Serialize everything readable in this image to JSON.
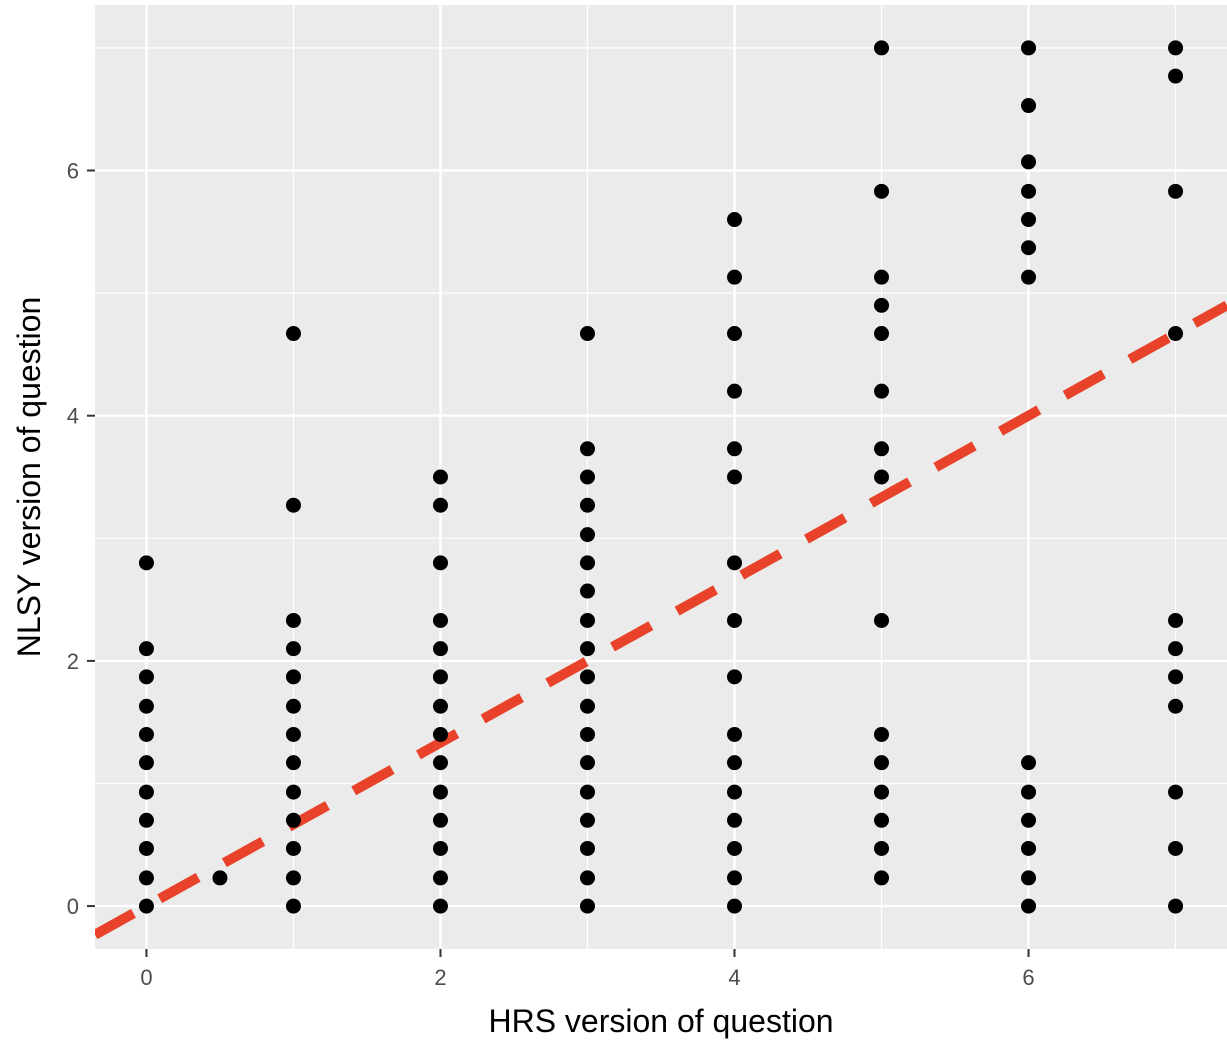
{
  "chart_data": {
    "type": "scatter",
    "title": "",
    "xlabel": "HRS version of question",
    "ylabel": "NLSY version of question",
    "xlim": [
      -0.35,
      7.35
    ],
    "ylim": [
      -0.35,
      7.35
    ],
    "x_ticks": [
      0,
      2,
      4,
      6
    ],
    "y_ticks": [
      0,
      2,
      4,
      6
    ],
    "x_tick_labels": [
      "0",
      "2",
      "4",
      "6"
    ],
    "y_tick_labels": [
      "0",
      "2",
      "4",
      "6"
    ],
    "grid": true,
    "background": "#ebebeb",
    "grid_color": "#ffffff",
    "point_color": "#000000",
    "reference_line": {
      "slope": 0.6667,
      "intercept": 0,
      "color": "#e8432a",
      "style": "dashed"
    },
    "series": [
      {
        "points": [
          [
            0,
            0
          ],
          [
            0,
            0.23
          ],
          [
            0,
            0.47
          ],
          [
            0,
            0.7
          ],
          [
            0,
            0.93
          ],
          [
            0,
            1.17
          ],
          [
            0,
            1.4
          ],
          [
            0,
            1.63
          ],
          [
            0,
            1.87
          ],
          [
            0,
            2.1
          ],
          [
            0,
            2.8
          ],
          [
            0.5,
            0.23
          ],
          [
            1,
            0
          ],
          [
            1,
            0.23
          ],
          [
            1,
            0.47
          ],
          [
            1,
            0.7
          ],
          [
            1,
            0.93
          ],
          [
            1,
            1.17
          ],
          [
            1,
            1.4
          ],
          [
            1,
            1.63
          ],
          [
            1,
            1.87
          ],
          [
            1,
            2.1
          ],
          [
            1,
            2.33
          ],
          [
            1,
            3.27
          ],
          [
            1,
            4.67
          ],
          [
            2,
            0
          ],
          [
            2,
            0.23
          ],
          [
            2,
            0.47
          ],
          [
            2,
            0.7
          ],
          [
            2,
            0.93
          ],
          [
            2,
            1.17
          ],
          [
            2,
            1.4
          ],
          [
            2,
            1.63
          ],
          [
            2,
            1.87
          ],
          [
            2,
            2.1
          ],
          [
            2,
            2.33
          ],
          [
            2,
            2.8
          ],
          [
            2,
            3.27
          ],
          [
            2,
            3.5
          ],
          [
            3,
            0
          ],
          [
            3,
            0.23
          ],
          [
            3,
            0.47
          ],
          [
            3,
            0.7
          ],
          [
            3,
            0.93
          ],
          [
            3,
            1.17
          ],
          [
            3,
            1.4
          ],
          [
            3,
            1.63
          ],
          [
            3,
            1.87
          ],
          [
            3,
            2.1
          ],
          [
            3,
            2.33
          ],
          [
            3,
            2.57
          ],
          [
            3,
            2.8
          ],
          [
            3,
            3.03
          ],
          [
            3,
            3.27
          ],
          [
            3,
            3.5
          ],
          [
            3,
            3.73
          ],
          [
            3,
            4.67
          ],
          [
            4,
            0
          ],
          [
            4,
            0.23
          ],
          [
            4,
            0.47
          ],
          [
            4,
            0.7
          ],
          [
            4,
            0.93
          ],
          [
            4,
            1.17
          ],
          [
            4,
            1.4
          ],
          [
            4,
            1.87
          ],
          [
            4,
            2.33
          ],
          [
            4,
            2.8
          ],
          [
            4,
            3.5
          ],
          [
            4,
            3.73
          ],
          [
            4,
            4.2
          ],
          [
            4,
            4.67
          ],
          [
            4,
            5.13
          ],
          [
            4,
            5.6
          ],
          [
            5,
            0.23
          ],
          [
            5,
            0.47
          ],
          [
            5,
            0.7
          ],
          [
            5,
            0.93
          ],
          [
            5,
            1.17
          ],
          [
            5,
            1.4
          ],
          [
            5,
            2.33
          ],
          [
            5,
            3.5
          ],
          [
            5,
            3.73
          ],
          [
            5,
            4.2
          ],
          [
            5,
            4.67
          ],
          [
            5,
            4.9
          ],
          [
            5,
            5.13
          ],
          [
            5,
            5.83
          ],
          [
            5,
            7
          ],
          [
            6,
            0
          ],
          [
            6,
            0.23
          ],
          [
            6,
            0.47
          ],
          [
            6,
            0.7
          ],
          [
            6,
            0.93
          ],
          [
            6,
            1.17
          ],
          [
            6,
            5.13
          ],
          [
            6,
            5.37
          ],
          [
            6,
            5.6
          ],
          [
            6,
            5.83
          ],
          [
            6,
            6.07
          ],
          [
            6,
            6.53
          ],
          [
            6,
            7
          ],
          [
            7,
            0
          ],
          [
            7,
            0.47
          ],
          [
            7,
            0.93
          ],
          [
            7,
            1.63
          ],
          [
            7,
            1.87
          ],
          [
            7,
            2.1
          ],
          [
            7,
            2.33
          ],
          [
            7,
            4.67
          ],
          [
            7,
            5.83
          ],
          [
            7,
            6.77
          ],
          [
            7,
            7
          ]
        ]
      }
    ]
  }
}
